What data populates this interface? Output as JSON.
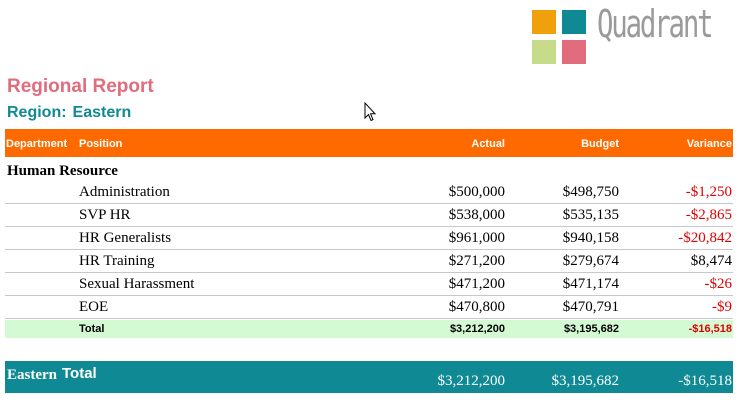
{
  "logo": {
    "text": "Quadrant",
    "colors": [
      "#f0a00a",
      "#0f8a94",
      "#c6dc8a",
      "#e06c7e"
    ]
  },
  "report": {
    "title": "Regional Report",
    "region_label": "Region:",
    "region_value": "Eastern"
  },
  "table": {
    "headers": {
      "department": "Department",
      "position": "Position",
      "actual": "Actual",
      "budget": "Budget",
      "variance": "Variance"
    },
    "section": "Human Resource",
    "rows": [
      {
        "position": "Administration",
        "actual": "$500,000",
        "budget": "$498,750",
        "variance": "-$1,250"
      },
      {
        "position": "SVP HR",
        "actual": "$538,000",
        "budget": "$535,135",
        "variance": "-$2,865"
      },
      {
        "position": "HR Generalists",
        "actual": "$961,000",
        "budget": "$940,158",
        "variance": "-$20,842"
      },
      {
        "position": "HR Training",
        "actual": "$271,200",
        "budget": "$279,674",
        "variance": "$8,474"
      },
      {
        "position": "Sexual Harassment",
        "actual": "$471,200",
        "budget": "$471,174",
        "variance": "-$26"
      },
      {
        "position": "EOE",
        "actual": "$470,800",
        "budget": "$470,791",
        "variance": "-$9"
      }
    ],
    "total": {
      "label": "Total",
      "actual": "$3,212,200",
      "budget": "$3,195,682",
      "variance": "-$16,518"
    },
    "grand_total": {
      "region": "Eastern",
      "label": "Total",
      "actual": "$3,212,200",
      "budget": "$3,195,682",
      "variance": "-$16,518"
    }
  }
}
